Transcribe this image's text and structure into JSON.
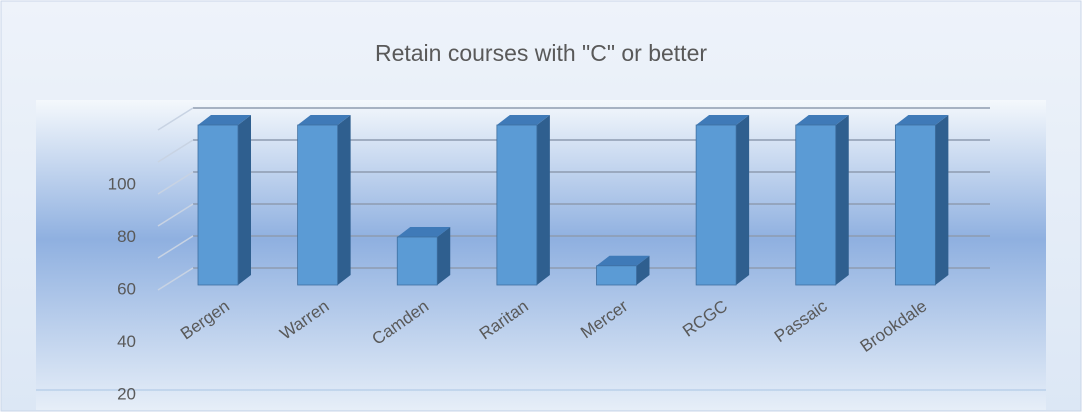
{
  "chart_data": {
    "type": "bar",
    "title": "Retain courses with \"C\" or better",
    "categories": [
      "Bergen",
      "Warren",
      "Camden",
      "Raritan",
      "Mercer",
      "RCGC",
      "Passaic",
      "Brookdale"
    ],
    "values": [
      100,
      100,
      30,
      100,
      12,
      100,
      100,
      100
    ],
    "color": "#5b9bd5",
    "ylim": [
      0,
      100
    ],
    "yticks": [
      20,
      40,
      60,
      80,
      100
    ],
    "grid": true
  }
}
